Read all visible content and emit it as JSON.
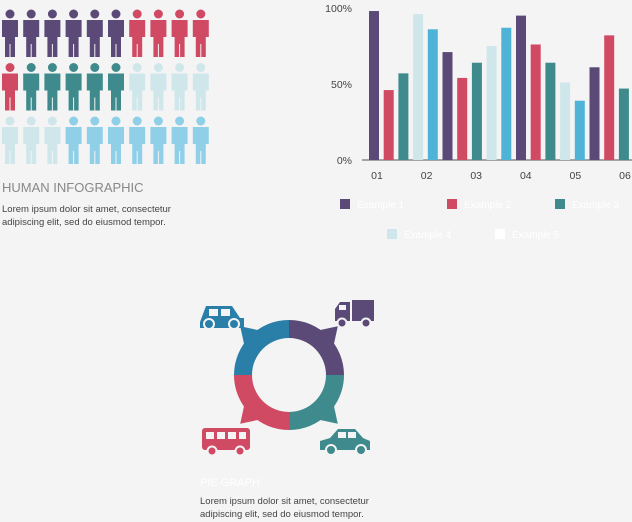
{
  "people": {
    "title": "HUMAN INFOGRAPHIC",
    "lines": [
      "Lorem ipsum dolor sit amet, consectetur",
      "adipiscing elit, sed do eiusmod tempor."
    ],
    "rows": [
      [
        {
          "color": "#5b4a78",
          "count": 6
        },
        {
          "color": "#d14a64",
          "count": 4
        }
      ],
      [
        {
          "color": "#d14a64",
          "count": 1
        },
        {
          "color": "#3f8a8c",
          "count": 5
        },
        {
          "color": "#cfe6ea",
          "count": 4
        }
      ],
      [
        {
          "color": "#cfe6ea",
          "count": 3
        },
        {
          "color": "#8fd0e8",
          "count": 7
        }
      ]
    ]
  },
  "chart_data": {
    "type": "bar",
    "x_labels": [
      "01",
      "02",
      "03",
      "04",
      "05",
      "06"
    ],
    "ylim": [
      0,
      100
    ],
    "yticks": [
      {
        "value": 0,
        "label": "0%"
      },
      {
        "value": 50,
        "label": "50%"
      },
      {
        "value": 100,
        "label": "100%"
      }
    ],
    "series": [
      {
        "name": "Example 1",
        "color": "#5b4a78",
        "legend_color": "#5b4a78",
        "values": [
          98,
          71,
          95,
          61
        ]
      },
      {
        "name": "Example 2",
        "color": "#d14a64",
        "legend_color": "#d14a64",
        "values": [
          46,
          54,
          76,
          82
        ]
      },
      {
        "name": "Example 3",
        "color": "#3f8a8c",
        "legend_color": "#3f8a8c",
        "values": [
          57,
          64,
          64,
          47
        ]
      },
      {
        "name": "Example 4",
        "color": "#cfe6ea",
        "legend_color": "#cfe6ea",
        "values": [
          96,
          75,
          51
        ]
      },
      {
        "name": "Example 5",
        "color": "#4fb3d8",
        "legend_color": "#ffffff",
        "values": [
          86,
          87,
          39
        ]
      }
    ]
  },
  "pie": {
    "title": "PIE GRAPH",
    "lines": [
      "Lorem ipsum dolor sit amet, consectetur",
      "adipiscing elit, sed do eiusmod tempor."
    ],
    "colors": [
      "#5b4a78",
      "#3f8a8c",
      "#d14a64",
      "#2a7fa8"
    ]
  }
}
